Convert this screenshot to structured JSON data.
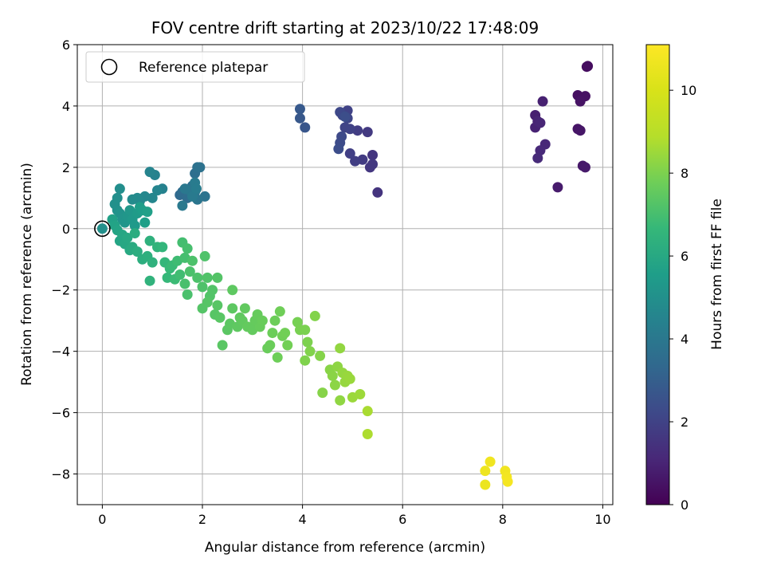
{
  "chart_data": {
    "type": "scatter",
    "title": "FOV centre drift starting at 2023/10/22 17:48:09",
    "xlabel": "Angular distance from reference (arcmin)",
    "ylabel": "Rotation from reference (arcmin)",
    "xlim": [
      -0.5,
      10.2
    ],
    "ylim": [
      -9,
      6
    ],
    "xticks": [
      0,
      2,
      4,
      6,
      8,
      10
    ],
    "yticks": [
      -8,
      -6,
      -4,
      -2,
      0,
      2,
      4,
      6
    ],
    "grid": true,
    "legend": {
      "position": "upper-left",
      "entries": [
        "Reference platepar"
      ]
    },
    "colormap": "viridis",
    "colorbar": {
      "label": "Hours from first FF file",
      "range": [
        0,
        11.1
      ],
      "ticks": [
        0,
        2,
        4,
        6,
        8,
        10
      ]
    },
    "reference_point": {
      "x": 0,
      "y": 0
    },
    "points": [
      [
        9.7,
        5.3,
        0.3
      ],
      [
        9.68,
        5.28,
        0.35
      ],
      [
        9.5,
        4.35,
        0.4
      ],
      [
        9.65,
        4.32,
        0.45
      ],
      [
        9.55,
        4.15,
        0.5
      ],
      [
        9.5,
        3.25,
        0.55
      ],
      [
        9.55,
        3.2,
        0.6
      ],
      [
        9.6,
        2.05,
        0.65
      ],
      [
        9.65,
        2.0,
        0.7
      ],
      [
        9.1,
        1.35,
        0.75
      ],
      [
        8.65,
        3.7,
        0.85
      ],
      [
        8.8,
        4.15,
        0.9
      ],
      [
        8.65,
        3.3,
        0.95
      ],
      [
        8.7,
        3.5,
        1.0
      ],
      [
        8.75,
        3.45,
        1.05
      ],
      [
        8.85,
        2.75,
        1.1
      ],
      [
        8.75,
        2.55,
        1.15
      ],
      [
        8.7,
        2.3,
        1.2
      ],
      [
        5.5,
        1.18,
        1.5
      ],
      [
        5.4,
        2.4,
        1.55
      ],
      [
        5.35,
        2.0,
        1.6
      ],
      [
        5.4,
        2.1,
        1.65
      ],
      [
        5.3,
        3.15,
        1.7
      ],
      [
        5.2,
        2.25,
        1.75
      ],
      [
        5.1,
        3.2,
        1.8
      ],
      [
        5.05,
        2.2,
        1.85
      ],
      [
        4.95,
        2.45,
        1.9
      ],
      [
        4.95,
        3.25,
        1.95
      ],
      [
        4.9,
        3.85,
        2.0
      ],
      [
        4.85,
        3.3,
        2.05
      ],
      [
        4.9,
        3.6,
        2.1
      ],
      [
        4.8,
        3.7,
        2.15
      ],
      [
        4.75,
        3.8,
        2.2
      ],
      [
        4.78,
        3.0,
        2.25
      ],
      [
        4.75,
        2.8,
        2.3
      ],
      [
        4.72,
        2.6,
        2.35
      ],
      [
        4.85,
        3.65,
        2.4
      ],
      [
        4.05,
        3.3,
        2.7
      ],
      [
        3.95,
        3.6,
        2.75
      ],
      [
        3.95,
        3.9,
        2.8
      ],
      [
        1.55,
        1.1,
        3.4
      ],
      [
        1.6,
        1.2,
        3.5
      ],
      [
        1.7,
        1.0,
        3.55
      ],
      [
        1.8,
        1.4,
        3.6
      ],
      [
        1.85,
        1.8,
        3.65
      ],
      [
        1.9,
        2.0,
        3.7
      ],
      [
        1.95,
        2.0,
        3.75
      ],
      [
        2.05,
        1.05,
        3.8
      ],
      [
        1.85,
        1.2,
        3.85
      ],
      [
        1.9,
        0.95,
        3.9
      ],
      [
        1.75,
        1.25,
        3.95
      ],
      [
        1.65,
        1.3,
        4.0
      ],
      [
        1.6,
        0.75,
        4.05
      ],
      [
        1.8,
        1.05,
        4.1
      ],
      [
        1.85,
        1.5,
        4.15
      ],
      [
        1.88,
        1.3,
        4.2
      ],
      [
        1.2,
        1.3,
        4.4
      ],
      [
        1.05,
        1.75,
        4.45
      ],
      [
        0.95,
        1.85,
        4.5
      ],
      [
        1.1,
        1.25,
        4.55
      ],
      [
        1.0,
        1.0,
        4.6
      ],
      [
        0.85,
        1.05,
        4.65
      ],
      [
        0.75,
        0.9,
        4.7
      ],
      [
        0.7,
        1.0,
        4.75
      ],
      [
        0.6,
        0.95,
        4.8
      ],
      [
        0.35,
        1.3,
        4.9
      ],
      [
        0.3,
        1.0,
        4.95
      ],
      [
        0.25,
        0.8,
        5.0
      ],
      [
        0.3,
        0.6,
        5.05
      ],
      [
        0.35,
        0.5,
        5.1
      ],
      [
        0.4,
        0.3,
        5.15
      ],
      [
        0.45,
        0.2,
        5.2
      ],
      [
        0.5,
        0.4,
        5.25
      ],
      [
        0.55,
        0.6,
        5.3
      ],
      [
        0.6,
        0.3,
        5.35
      ],
      [
        0.65,
        0.1,
        5.4
      ],
      [
        0.7,
        0.5,
        5.45
      ],
      [
        0.75,
        0.7,
        5.5
      ],
      [
        0.8,
        0.6,
        5.55
      ],
      [
        0.85,
        0.2,
        5.6
      ],
      [
        0.9,
        0.55,
        5.65
      ],
      [
        0.2,
        0.3,
        5.7
      ],
      [
        0.25,
        0.1,
        5.75
      ],
      [
        0.3,
        -0.05,
        5.8
      ],
      [
        0.35,
        -0.4,
        5.85
      ],
      [
        0.4,
        -0.2,
        5.9
      ],
      [
        0.45,
        -0.5,
        5.95
      ],
      [
        0.5,
        -0.3,
        6.0
      ],
      [
        0.55,
        -0.7,
        6.05
      ],
      [
        0.6,
        -0.6,
        6.1
      ],
      [
        0.65,
        -0.15,
        6.15
      ],
      [
        0.7,
        -0.75,
        6.2
      ],
      [
        0.8,
        -1.0,
        6.25
      ],
      [
        0.9,
        -0.9,
        6.3
      ],
      [
        0.95,
        -0.4,
        6.35
      ],
      [
        1.0,
        -1.1,
        6.4
      ],
      [
        0.95,
        -1.7,
        6.45
      ],
      [
        1.1,
        -0.6,
        6.5
      ],
      [
        1.2,
        -0.6,
        6.55
      ],
      [
        1.25,
        -1.1,
        6.6
      ],
      [
        1.3,
        -1.6,
        6.65
      ],
      [
        1.35,
        -1.3,
        6.7
      ],
      [
        1.4,
        -1.2,
        6.75
      ],
      [
        1.45,
        -1.65,
        6.8
      ],
      [
        1.5,
        -1.05,
        6.85
      ],
      [
        1.55,
        -1.5,
        6.9
      ],
      [
        1.6,
        -0.45,
        6.95
      ],
      [
        1.65,
        -0.95,
        7.0
      ],
      [
        1.7,
        -0.65,
        7.02
      ],
      [
        1.65,
        -1.8,
        7.05
      ],
      [
        1.7,
        -2.15,
        7.08
      ],
      [
        1.75,
        -1.4,
        7.1
      ],
      [
        1.8,
        -1.05,
        7.12
      ],
      [
        1.9,
        -1.6,
        7.14
      ],
      [
        2.0,
        -1.9,
        7.16
      ],
      [
        2.05,
        -0.9,
        7.18
      ],
      [
        2.1,
        -1.6,
        7.2
      ],
      [
        2.15,
        -2.2,
        7.22
      ],
      [
        2.2,
        -2.0,
        7.24
      ],
      [
        2.3,
        -1.6,
        7.26
      ],
      [
        2.0,
        -2.6,
        7.28
      ],
      [
        2.1,
        -2.4,
        7.3
      ],
      [
        2.25,
        -2.8,
        7.32
      ],
      [
        2.3,
        -2.5,
        7.34
      ],
      [
        2.35,
        -2.9,
        7.36
      ],
      [
        2.4,
        -3.8,
        7.38
      ],
      [
        2.5,
        -3.3,
        7.4
      ],
      [
        2.55,
        -3.1,
        7.42
      ],
      [
        2.6,
        -2.6,
        7.44
      ],
      [
        2.6,
        -2.0,
        7.46
      ],
      [
        2.7,
        -3.2,
        7.48
      ],
      [
        2.75,
        -2.9,
        7.5
      ],
      [
        2.8,
        -3.0,
        7.52
      ],
      [
        2.85,
        -2.6,
        7.54
      ],
      [
        2.9,
        -3.2,
        7.56
      ],
      [
        3.0,
        -3.3,
        7.58
      ],
      [
        3.05,
        -3.0,
        7.6
      ],
      [
        3.1,
        -2.8,
        7.62
      ],
      [
        3.15,
        -3.2,
        7.64
      ],
      [
        3.2,
        -3.0,
        7.66
      ],
      [
        3.3,
        -3.9,
        7.68
      ],
      [
        3.35,
        -3.8,
        7.7
      ],
      [
        3.4,
        -3.4,
        7.72
      ],
      [
        3.45,
        -3.0,
        7.74
      ],
      [
        3.5,
        -4.2,
        7.76
      ],
      [
        3.55,
        -2.7,
        7.78
      ],
      [
        3.6,
        -3.5,
        7.8
      ],
      [
        3.65,
        -3.4,
        7.82
      ],
      [
        3.7,
        -3.8,
        7.84
      ],
      [
        3.9,
        -3.05,
        7.9
      ],
      [
        3.95,
        -3.3,
        7.93
      ],
      [
        4.05,
        -3.3,
        7.96
      ],
      [
        4.1,
        -3.7,
        8.0
      ],
      [
        4.05,
        -4.3,
        8.03
      ],
      [
        4.15,
        -4.0,
        8.06
      ],
      [
        4.25,
        -2.85,
        8.09
      ],
      [
        4.35,
        -4.15,
        8.12
      ],
      [
        4.4,
        -5.35,
        8.15
      ],
      [
        4.55,
        -4.6,
        8.18
      ],
      [
        4.6,
        -4.8,
        8.21
      ],
      [
        4.65,
        -5.1,
        8.24
      ],
      [
        4.7,
        -4.5,
        8.27
      ],
      [
        4.75,
        -5.6,
        8.3
      ],
      [
        4.75,
        -3.9,
        8.33
      ],
      [
        4.8,
        -4.7,
        8.36
      ],
      [
        4.85,
        -5.0,
        8.39
      ],
      [
        4.9,
        -4.8,
        8.42
      ],
      [
        4.95,
        -4.9,
        8.45
      ],
      [
        5.0,
        -5.5,
        8.48
      ],
      [
        5.15,
        -5.4,
        8.51
      ],
      [
        5.3,
        -5.95,
        8.7
      ],
      [
        5.3,
        -6.7,
        8.75
      ],
      [
        7.65,
        -8.35,
        10.6
      ],
      [
        7.65,
        -7.9,
        10.65
      ],
      [
        7.75,
        -7.6,
        10.7
      ],
      [
        8.05,
        -7.9,
        10.75
      ],
      [
        8.08,
        -8.1,
        10.8
      ],
      [
        8.1,
        -8.25,
        10.85
      ]
    ]
  }
}
